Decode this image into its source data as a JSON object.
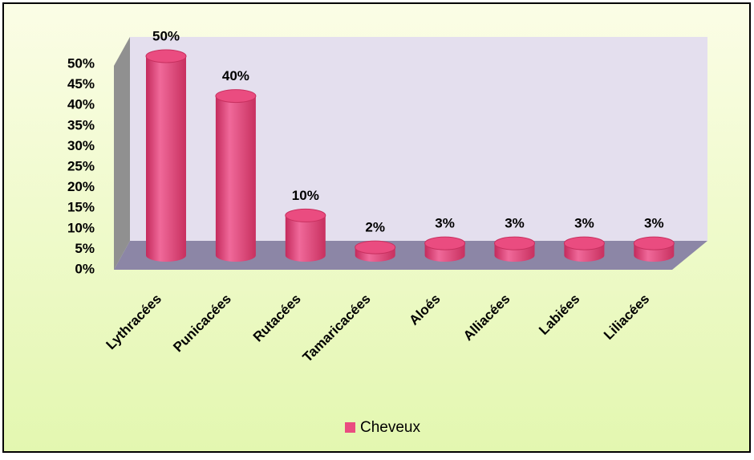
{
  "chart_data": {
    "type": "bar3d",
    "categories": [
      "Lythracées",
      "Punicacées",
      "Rutacées",
      "Tamaricacées",
      "Aloés",
      "Alliacées",
      "Labiées",
      "Liliacées"
    ],
    "series": [
      {
        "name": "Cheveux",
        "color": "#ea4c80",
        "values": [
          50,
          40,
          10,
          2,
          3,
          3,
          3,
          3
        ],
        "value_labels": [
          "50%",
          "40%",
          "10%",
          "2%",
          "3%",
          "3%",
          "3%",
          "3%"
        ]
      }
    ],
    "ylim": [
      0,
      50
    ],
    "yticks": [
      {
        "value": 0,
        "label": "0%"
      },
      {
        "value": 5,
        "label": "5%"
      },
      {
        "value": 10,
        "label": "10%"
      },
      {
        "value": 15,
        "label": "15%"
      },
      {
        "value": 20,
        "label": "20%"
      },
      {
        "value": 25,
        "label": "25%"
      },
      {
        "value": 30,
        "label": "30%"
      },
      {
        "value": 35,
        "label": "35%"
      },
      {
        "value": 40,
        "label": "40%"
      },
      {
        "value": 45,
        "label": "45%"
      },
      {
        "value": 50,
        "label": "50%"
      }
    ],
    "legend": "bottom"
  }
}
